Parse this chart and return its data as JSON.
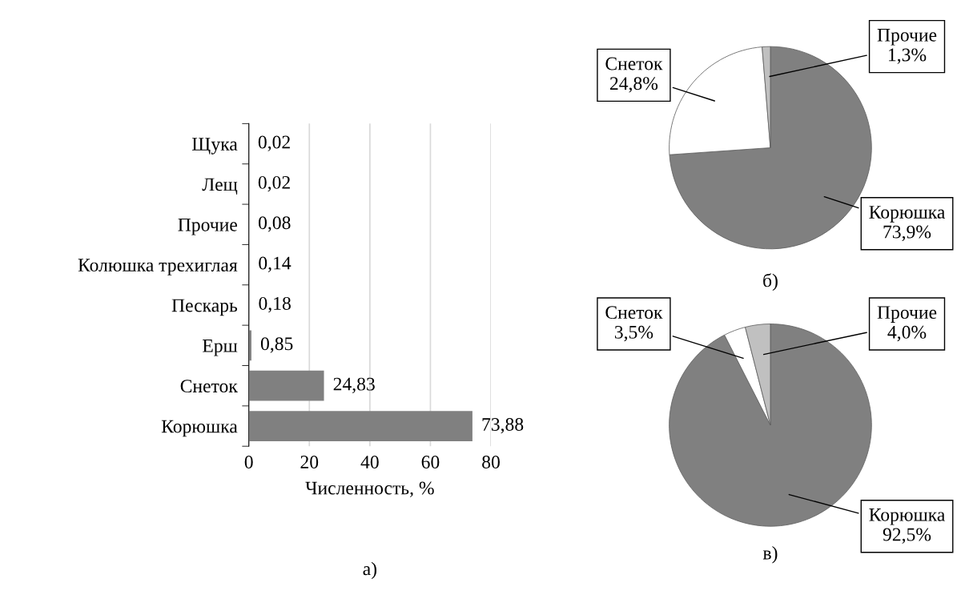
{
  "chart_data": [
    {
      "type": "bar",
      "orientation": "horizontal",
      "title": "а)",
      "xlabel": "Численность, %",
      "categories": [
        "Щука",
        "Лещ",
        "Прочие",
        "Колюшка трехиглая",
        "Пескарь",
        "Ерш",
        "Снеток",
        "Корюшка"
      ],
      "values": [
        0.02,
        0.02,
        0.08,
        0.14,
        0.18,
        0.85,
        24.83,
        73.88
      ],
      "value_labels": [
        "0,02",
        "0,02",
        "0,08",
        "0,14",
        "0,18",
        "0,85",
        "24,83",
        "73,88"
      ],
      "color": "#808080",
      "xlim": [
        0,
        80
      ],
      "xticks": [
        0,
        20,
        40,
        60,
        80
      ],
      "grid": "x",
      "legend": false
    },
    {
      "type": "pie",
      "title": "б)",
      "categories": [
        "Корюшка",
        "Снеток",
        "Прочие"
      ],
      "values": [
        73.9,
        24.8,
        1.3
      ],
      "value_labels": [
        "73,9%",
        "24,8%",
        "1,3%"
      ],
      "colors": [
        "#808080",
        "#ffffff",
        "#c0c0c0"
      ],
      "legend": false
    },
    {
      "type": "pie",
      "title": "в)",
      "categories": [
        "Корюшка",
        "Снеток",
        "Прочие"
      ],
      "values": [
        92.5,
        3.5,
        4.0
      ],
      "value_labels": [
        "92,5%",
        "3,5%",
        "4,0%"
      ],
      "colors": [
        "#808080",
        "#ffffff",
        "#c0c0c0"
      ],
      "legend": false
    }
  ]
}
